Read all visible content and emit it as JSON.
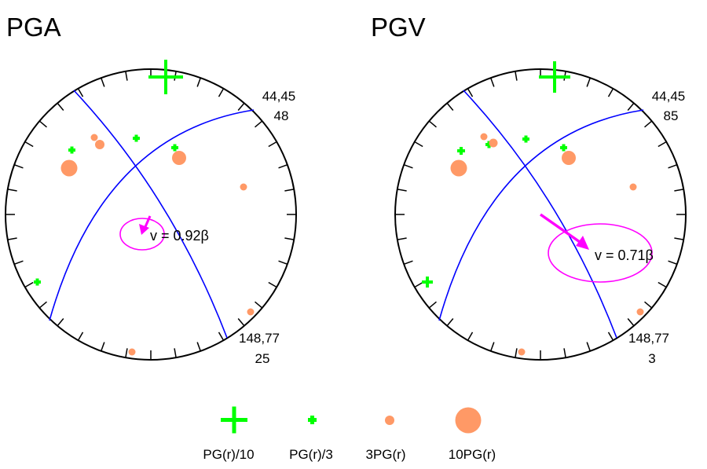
{
  "panels": [
    {
      "title": "PGA",
      "plane_labels": {
        "upper_top": "44,45",
        "upper_bottom": "48",
        "lower_top": "148,77",
        "lower_bottom": "25"
      },
      "velocity_label": "v = 0.92β"
    },
    {
      "title": "PGV",
      "plane_labels": {
        "upper_top": "44,45",
        "upper_bottom": "85",
        "lower_top": "148,77",
        "lower_bottom": "3"
      },
      "velocity_label": "v = 0.71β"
    }
  ],
  "legend": [
    {
      "label": "PG(r)/10",
      "symbol": "large-plus"
    },
    {
      "label": "PG(r)/3",
      "symbol": "small-plus"
    },
    {
      "label": "3PG(r)",
      "symbol": "small-circle"
    },
    {
      "label": "10PG(r)",
      "symbol": "large-circle"
    }
  ],
  "colors": {
    "net": "#000000",
    "nodal_planes": "#0000ff",
    "plus_marker": "#00ff00",
    "circle_marker": "#ff9966",
    "velocity": "#ff00ff"
  }
}
